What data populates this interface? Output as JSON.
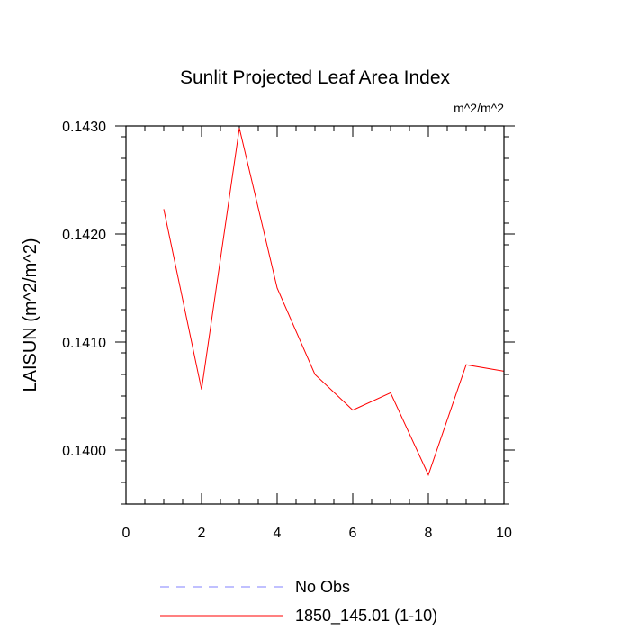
{
  "chart_data": {
    "type": "line",
    "title": "Sunlit Projected Leaf Area Index",
    "units": "m^2/m^2",
    "xlabel": "",
    "ylabel": "LAISUN  (m^2/m^2)",
    "xlim": [
      0,
      10
    ],
    "ylim": [
      0.1395,
      0.143
    ],
    "x_ticks": [
      0,
      2,
      4,
      6,
      8,
      10
    ],
    "x_tick_labels": [
      "0",
      "2",
      "4",
      "6",
      "8",
      "10"
    ],
    "y_ticks": [
      0.14,
      0.141,
      0.142,
      0.143
    ],
    "y_tick_labels": [
      "0.1400",
      "0.1410",
      "0.1420",
      "0.1430"
    ],
    "grid": false,
    "legend_position": "bottom",
    "series": [
      {
        "name": "No Obs",
        "color": "#8080ff",
        "dash": "dashed",
        "x": [],
        "y": []
      },
      {
        "name": "1850_145.01 (1-10)",
        "color": "#ff0000",
        "dash": "solid",
        "x": [
          1,
          2,
          3,
          4,
          5,
          6,
          7,
          8,
          9,
          10
        ],
        "y": [
          0.14223,
          0.14056,
          0.14298,
          0.1415,
          0.1407,
          0.14037,
          0.14053,
          0.13977,
          0.14079,
          0.14073
        ]
      }
    ]
  }
}
